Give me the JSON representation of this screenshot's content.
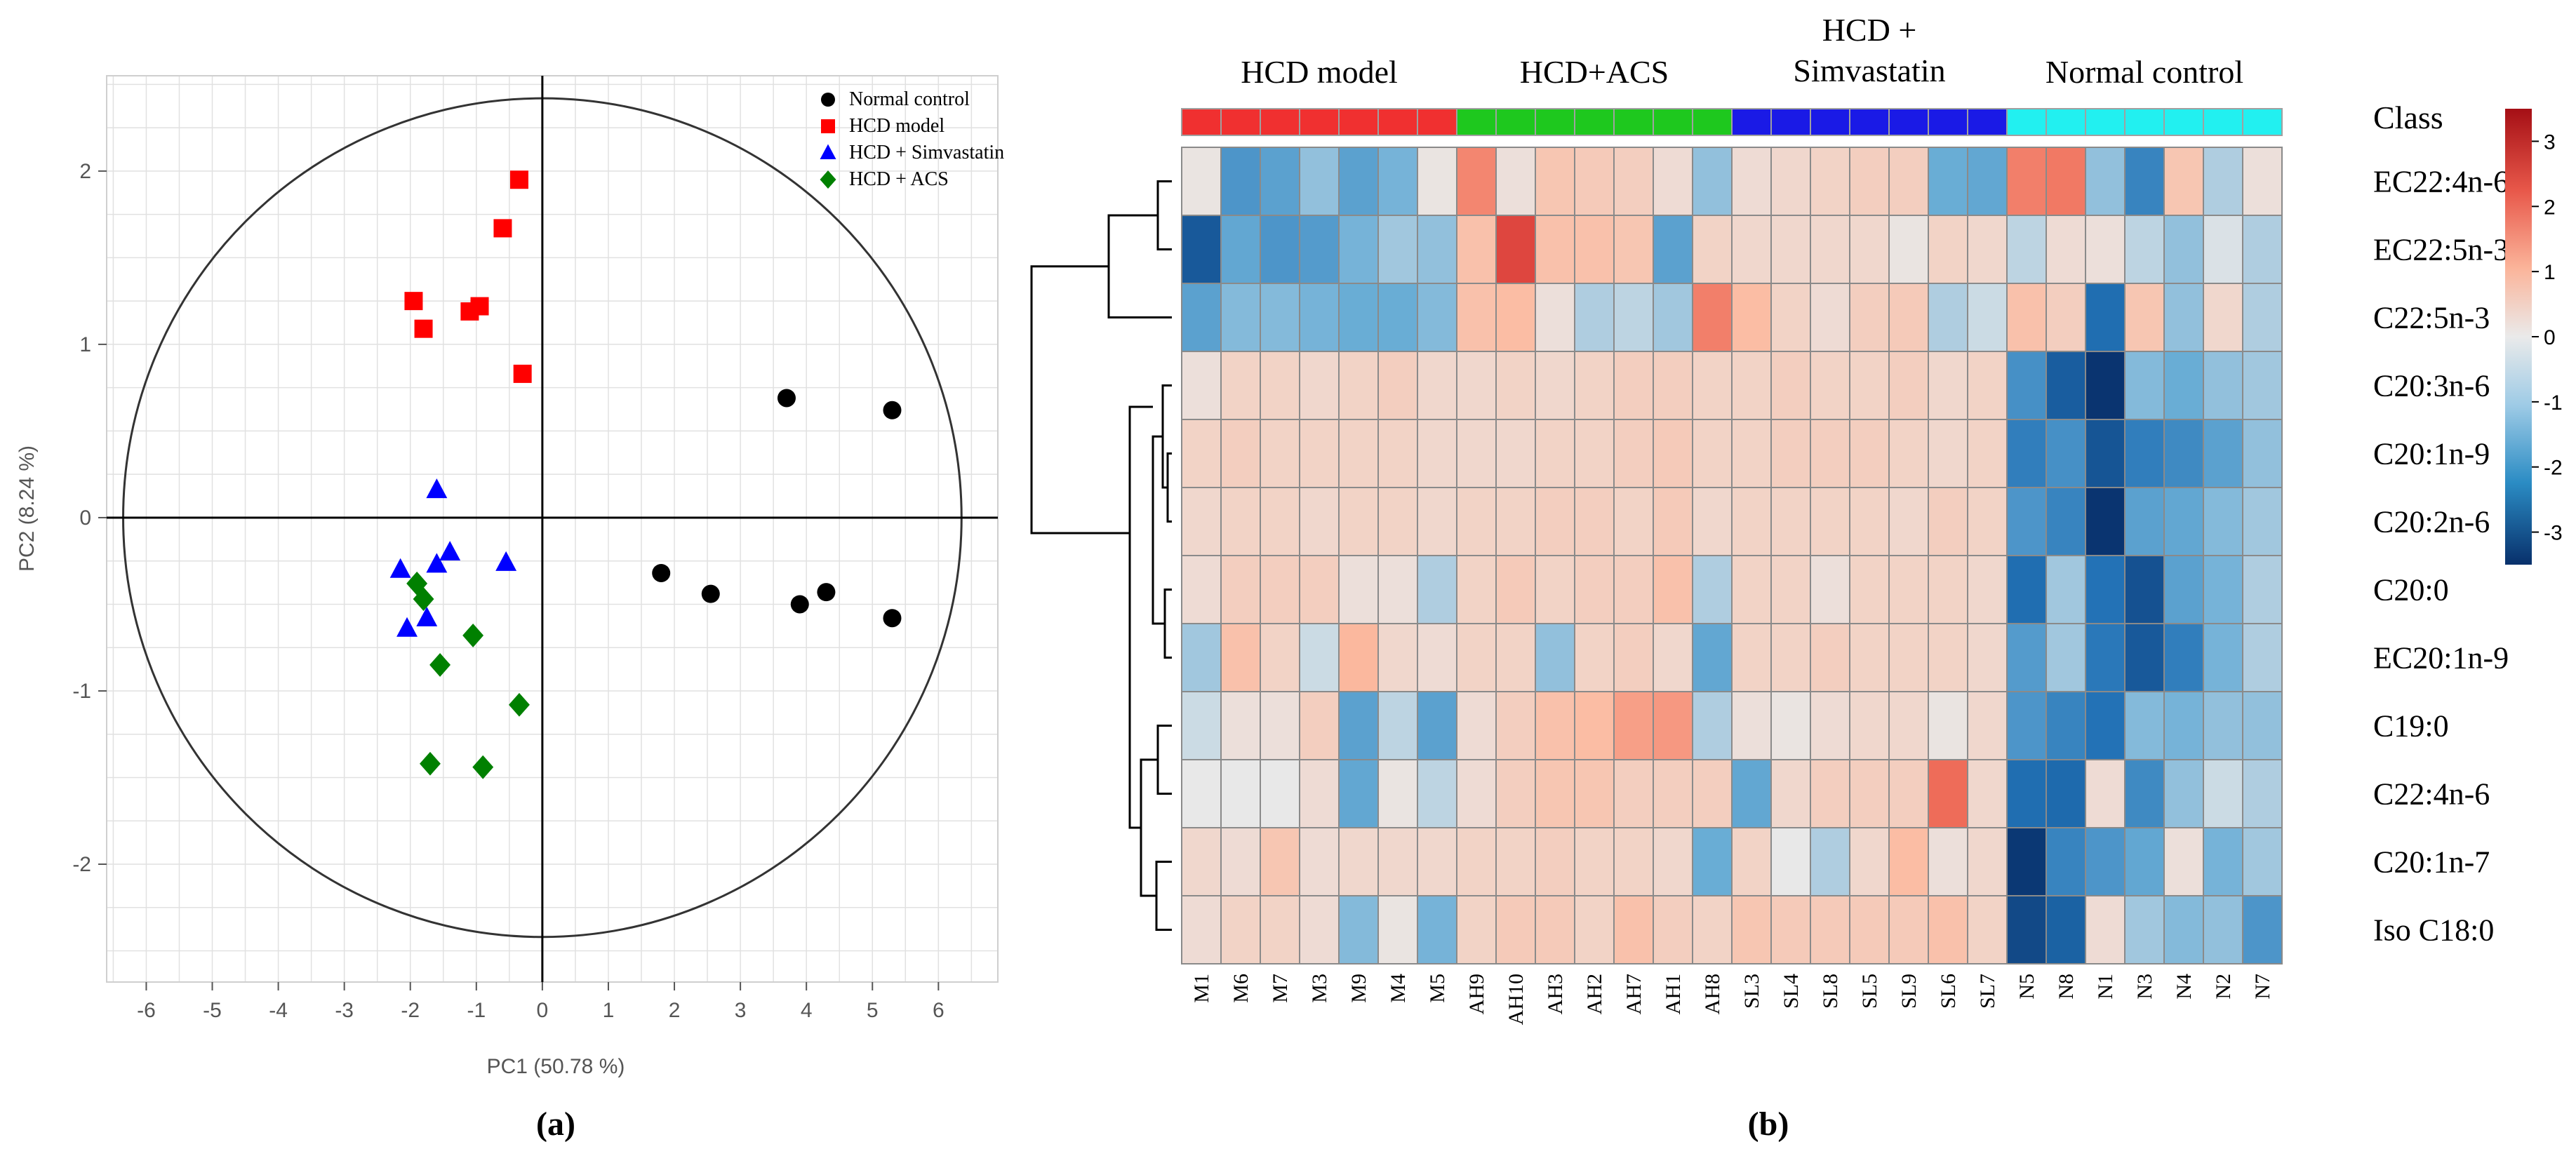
{
  "chart_data": [
    {
      "type": "scatter",
      "panel_label": "(a)",
      "xlabel": "PC1 (50.78 %)",
      "ylabel": "PC2 (8.24 %)",
      "xlim": [
        -6.6,
        6.9
      ],
      "ylim": [
        -2.68,
        2.55
      ],
      "x_ticks": [
        "-6",
        "-5",
        "-4",
        "-3",
        "-2",
        "-1",
        "0",
        "1",
        "2",
        "3",
        "4",
        "5",
        "6"
      ],
      "y_ticks": [
        "-2",
        "-1",
        "0",
        "1",
        "2"
      ],
      "ellipse": {
        "rx": 6.35,
        "ry": 2.42
      },
      "series": [
        {
          "name": "Normal control",
          "color": "#000000",
          "marker": "circle",
          "points": [
            [
              3.7,
              0.69
            ],
            [
              5.3,
              0.62
            ],
            [
              1.8,
              -0.32
            ],
            [
              2.55,
              -0.44
            ],
            [
              3.9,
              -0.5
            ],
            [
              4.3,
              -0.43
            ],
            [
              5.3,
              -0.58
            ]
          ]
        },
        {
          "name": "HCD model",
          "color": "#ff0000",
          "marker": "square",
          "points": [
            [
              -0.35,
              1.95
            ],
            [
              -0.6,
              1.67
            ],
            [
              -1.95,
              1.25
            ],
            [
              -1.8,
              1.09
            ],
            [
              -1.1,
              1.19
            ],
            [
              -0.95,
              1.22
            ],
            [
              -0.3,
              0.83
            ]
          ]
        },
        {
          "name": "HCD + Simvastatin",
          "color": "#0000ff",
          "marker": "triangle",
          "points": [
            [
              -1.6,
              0.16
            ],
            [
              -2.15,
              -0.3
            ],
            [
              -1.6,
              -0.27
            ],
            [
              -1.4,
              -0.2
            ],
            [
              -0.55,
              -0.26
            ],
            [
              -2.05,
              -0.64
            ],
            [
              -1.75,
              -0.58
            ]
          ]
        },
        {
          "name": "HCD + ACS",
          "color": "#008000",
          "marker": "diamond",
          "points": [
            [
              -1.9,
              -0.38
            ],
            [
              -1.8,
              -0.47
            ],
            [
              -1.05,
              -0.68
            ],
            [
              -1.55,
              -0.85
            ],
            [
              -0.35,
              -1.08
            ],
            [
              -1.7,
              -1.42
            ],
            [
              -0.9,
              -1.44
            ]
          ]
        }
      ]
    },
    {
      "type": "heatmap",
      "panel_label": "(b)",
      "class_label": "Class",
      "groups": [
        {
          "label": "HCD model",
          "label_lines": [
            "HCD model"
          ],
          "color": "#f03030",
          "count": 7
        },
        {
          "label": "HCD+ACS",
          "label_lines": [
            "HCD+ACS"
          ],
          "color": "#1ec81e",
          "count": 7
        },
        {
          "label": "HCD + Simvastatin",
          "label_lines": [
            "HCD +",
            "Simvastatin"
          ],
          "color": "#1a1ae6",
          "count": 7
        },
        {
          "label": "Normal control",
          "label_lines": [
            "Normal control"
          ],
          "color": "#22f0f0",
          "count": 7
        }
      ],
      "columns": [
        "M1",
        "M6",
        "M7",
        "M3",
        "M9",
        "M4",
        "M5",
        "AH9",
        "AH10",
        "AH3",
        "AH2",
        "AH7",
        "AH1",
        "AH8",
        "SL3",
        "SL4",
        "SL8",
        "SL5",
        "SL9",
        "SL6",
        "SL7",
        "N5",
        "N8",
        "N1",
        "N3",
        "N4",
        "N2",
        "N7"
      ],
      "rows": [
        "EC22:4n-6",
        "EC22:5n-3",
        "C22:5n-3",
        "C20:3n-6",
        "C20:1n-9",
        "C20:2n-6",
        "C20:0",
        "EC20:1n-9",
        "C19:0",
        "C22:4n-6",
        "C20:1n-7",
        "Iso C18:0"
      ],
      "values": [
        [
          0.1,
          -1.3,
          -1.1,
          -0.6,
          -1.1,
          -0.8,
          0.1,
          1.9,
          0.2,
          0.8,
          0.7,
          0.6,
          0.3,
          -0.6,
          0.3,
          0.4,
          0.5,
          0.6,
          0.6,
          -0.9,
          -1.0,
          2.0,
          2.1,
          -0.6,
          -1.6,
          0.8,
          -0.4,
          0.2
        ],
        [
          -2.5,
          -1.0,
          -1.3,
          -1.2,
          -0.8,
          -0.5,
          -0.6,
          0.9,
          2.8,
          0.9,
          0.9,
          0.8,
          -1.1,
          0.5,
          0.4,
          0.4,
          0.4,
          0.4,
          0.1,
          0.5,
          0.4,
          -0.3,
          0.3,
          0.2,
          -0.3,
          -0.6,
          -0.1,
          -0.4
        ],
        [
          -1.1,
          -0.7,
          -0.7,
          -0.8,
          -0.9,
          -0.9,
          -0.7,
          0.9,
          1.0,
          0.2,
          -0.4,
          -0.3,
          -0.5,
          2.0,
          1.0,
          0.5,
          0.3,
          0.6,
          0.7,
          -0.4,
          -0.2,
          0.9,
          0.6,
          -2.0,
          0.8,
          -0.6,
          0.4,
          -0.4
        ],
        [
          0.2,
          0.5,
          0.5,
          0.4,
          0.5,
          0.6,
          0.4,
          0.4,
          0.5,
          0.4,
          0.5,
          0.6,
          0.6,
          0.5,
          0.5,
          0.6,
          0.5,
          0.5,
          0.6,
          0.4,
          0.5,
          -1.4,
          -2.4,
          -3.4,
          -0.7,
          -0.9,
          -0.6,
          -0.5
        ],
        [
          0.5,
          0.6,
          0.5,
          0.5,
          0.5,
          0.5,
          0.4,
          0.4,
          0.4,
          0.5,
          0.5,
          0.6,
          0.7,
          0.5,
          0.5,
          0.6,
          0.6,
          0.6,
          0.5,
          0.4,
          0.5,
          -1.7,
          -1.4,
          -2.6,
          -1.7,
          -1.5,
          -1.1,
          -0.6
        ],
        [
          0.4,
          0.5,
          0.5,
          0.4,
          0.5,
          0.5,
          0.4,
          0.5,
          0.5,
          0.6,
          0.6,
          0.5,
          0.7,
          0.4,
          0.5,
          0.5,
          0.5,
          0.5,
          0.4,
          0.6,
          0.5,
          -1.3,
          -1.6,
          -3.4,
          -1.1,
          -1.0,
          -0.7,
          -0.5
        ],
        [
          0.3,
          0.6,
          0.6,
          0.6,
          0.2,
          0.2,
          -0.4,
          0.5,
          0.7,
          0.5,
          0.6,
          0.6,
          0.9,
          -0.4,
          0.5,
          0.5,
          0.2,
          0.5,
          0.5,
          0.5,
          0.4,
          -2.0,
          -0.5,
          -1.9,
          -2.7,
          -1.1,
          -0.8,
          -0.4
        ],
        [
          -0.5,
          0.9,
          0.5,
          -0.2,
          1.1,
          0.4,
          0.3,
          0.5,
          0.5,
          -0.6,
          0.5,
          0.6,
          0.4,
          -1.0,
          0.5,
          0.5,
          0.6,
          0.5,
          0.5,
          0.5,
          0.4,
          -1.2,
          -0.5,
          -1.8,
          -2.5,
          -1.7,
          -0.8,
          -0.4
        ],
        [
          -0.2,
          0.2,
          0.2,
          0.6,
          -1.1,
          -0.3,
          -1.1,
          0.3,
          0.6,
          0.9,
          1.0,
          1.5,
          1.6,
          -0.4,
          0.2,
          0.1,
          0.3,
          0.4,
          0.4,
          0.1,
          0.4,
          -1.3,
          -1.6,
          -1.9,
          -0.7,
          -0.8,
          -0.6,
          -0.6
        ],
        [
          0.0,
          0.0,
          0.0,
          0.3,
          -1.0,
          0.1,
          -0.3,
          0.3,
          0.6,
          0.8,
          0.8,
          0.6,
          0.6,
          0.6,
          -1.0,
          0.4,
          0.6,
          0.6,
          0.6,
          2.3,
          0.4,
          -2.0,
          -2.1,
          0.3,
          -1.5,
          -0.6,
          -0.2,
          -0.4
        ],
        [
          0.4,
          0.3,
          0.8,
          0.3,
          0.4,
          0.4,
          0.4,
          0.5,
          0.5,
          0.6,
          0.5,
          0.5,
          0.4,
          -0.9,
          0.5,
          0.0,
          -0.4,
          0.4,
          1.0,
          0.2,
          0.4,
          -3.3,
          -1.6,
          -1.3,
          -1.0,
          0.2,
          -0.8,
          -0.5
        ],
        [
          0.3,
          0.5,
          0.5,
          0.3,
          -0.7,
          0.1,
          -0.8,
          0.5,
          0.7,
          0.7,
          0.5,
          0.9,
          0.6,
          0.5,
          0.8,
          0.7,
          0.7,
          0.7,
          0.7,
          0.9,
          0.5,
          -2.9,
          -2.3,
          0.3,
          -0.5,
          -0.7,
          -0.6,
          -1.3
        ]
      ],
      "colorbar": {
        "ticks": [
          "3",
          "2",
          "1",
          "0",
          "-1",
          "-2",
          "-3"
        ],
        "range": [
          -3.5,
          3.5
        ]
      },
      "colorscale": {
        "low": "#08306b",
        "mid": "#e8e8e8",
        "high": "#c8101a"
      }
    }
  ]
}
